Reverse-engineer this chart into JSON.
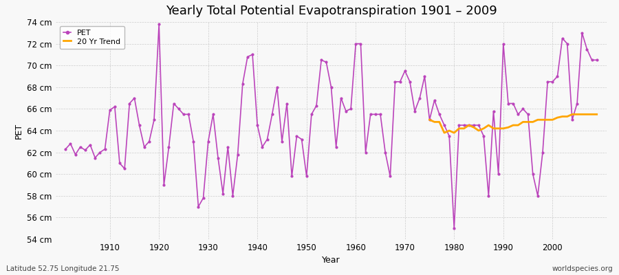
{
  "title": "Yearly Total Potential Evapotranspiration 1901 – 2009",
  "xlabel": "Year",
  "ylabel": "PET",
  "bg_color": "#f8f8f8",
  "pet_color": "#bb44bb",
  "trend_color": "#ffa500",
  "years": [
    1901,
    1902,
    1903,
    1904,
    1905,
    1906,
    1907,
    1908,
    1909,
    1910,
    1911,
    1912,
    1913,
    1914,
    1915,
    1916,
    1917,
    1918,
    1919,
    1920,
    1921,
    1922,
    1923,
    1924,
    1925,
    1926,
    1927,
    1928,
    1929,
    1930,
    1931,
    1932,
    1933,
    1934,
    1935,
    1936,
    1937,
    1938,
    1939,
    1940,
    1941,
    1942,
    1943,
    1944,
    1945,
    1946,
    1947,
    1948,
    1949,
    1950,
    1951,
    1952,
    1953,
    1954,
    1955,
    1956,
    1957,
    1958,
    1959,
    1960,
    1961,
    1962,
    1963,
    1964,
    1965,
    1966,
    1967,
    1968,
    1969,
    1970,
    1971,
    1972,
    1973,
    1974,
    1975,
    1976,
    1977,
    1978,
    1979,
    1980,
    1981,
    1982,
    1983,
    1984,
    1985,
    1986,
    1987,
    1988,
    1989,
    1990,
    1991,
    1992,
    1993,
    1994,
    1995,
    1996,
    1997,
    1998,
    1999,
    2000,
    2001,
    2002,
    2003,
    2004,
    2005,
    2006,
    2007,
    2008,
    2009
  ],
  "pet_values": [
    62.3,
    62.8,
    61.8,
    62.5,
    62.2,
    62.7,
    61.5,
    62.0,
    62.3,
    65.9,
    66.2,
    61.0,
    60.5,
    66.5,
    67.0,
    64.5,
    62.5,
    63.0,
    65.0,
    73.8,
    59.0,
    62.5,
    66.5,
    66.0,
    65.5,
    65.5,
    63.0,
    57.0,
    57.8,
    63.0,
    65.5,
    61.5,
    58.2,
    62.5,
    58.0,
    61.8,
    68.3,
    70.8,
    71.0,
    64.5,
    62.5,
    63.2,
    65.5,
    68.0,
    63.0,
    66.5,
    59.8,
    63.5,
    63.2,
    59.8,
    65.5,
    66.3,
    70.5,
    70.3,
    68.0,
    62.5,
    67.0,
    65.8,
    66.0,
    72.0,
    72.0,
    62.0,
    65.5,
    65.5,
    65.5,
    62.0,
    59.8,
    68.5,
    68.5,
    69.5,
    68.5,
    65.8,
    67.0,
    69.0,
    65.0,
    66.8,
    65.5,
    64.5,
    63.5,
    55.0,
    64.5,
    64.5,
    64.5,
    64.5,
    64.5,
    63.5,
    58.0,
    65.8,
    60.0,
    72.0,
    66.5,
    66.5,
    65.5,
    66.0,
    65.5,
    60.0,
    58.0,
    62.0,
    68.5,
    68.5,
    69.0,
    72.5,
    72.0,
    65.0,
    66.5,
    73.0,
    71.5,
    70.5,
    70.5
  ],
  "trend_years": [
    1975,
    1976,
    1977,
    1978,
    1979,
    1980,
    1981,
    1982,
    1983,
    1984,
    1985,
    1986,
    1987,
    1988,
    1989,
    1990,
    1991,
    1992,
    1993,
    1994,
    1995,
    1996,
    1997,
    1998,
    1999,
    2000,
    2001,
    2002,
    2003,
    2004,
    2005,
    2006,
    2007,
    2008,
    2009
  ],
  "trend_values": [
    65.0,
    64.8,
    64.8,
    63.8,
    64.0,
    63.8,
    64.2,
    64.2,
    64.5,
    64.3,
    64.0,
    64.2,
    64.5,
    64.2,
    64.2,
    64.2,
    64.3,
    64.5,
    64.5,
    64.8,
    64.8,
    64.8,
    65.0,
    65.0,
    65.0,
    65.0,
    65.2,
    65.3,
    65.3,
    65.5,
    65.5,
    65.5,
    65.5,
    65.5,
    65.5
  ],
  "ylim": [
    54,
    74
  ],
  "yticks": [
    54,
    56,
    58,
    60,
    62,
    64,
    66,
    68,
    70,
    72,
    74
  ],
  "ytick_labels": [
    "54 cm",
    "56 cm",
    "58 cm",
    "60 cm",
    "62 cm",
    "64 cm",
    "66 cm",
    "68 cm",
    "70 cm",
    "72 cm",
    "74 cm"
  ],
  "xticks": [
    1910,
    1920,
    1930,
    1940,
    1950,
    1960,
    1970,
    1980,
    1990,
    2000
  ],
  "xlim": [
    1899,
    2011
  ],
  "bottom_left_text": "Latitude 52.75 Longitude 21.75",
  "bottom_right_text": "worldspecies.org",
  "legend_pet": "PET",
  "legend_trend": "20 Yr Trend",
  "title_fontsize": 13,
  "axis_fontsize": 9,
  "tick_fontsize": 8.5
}
